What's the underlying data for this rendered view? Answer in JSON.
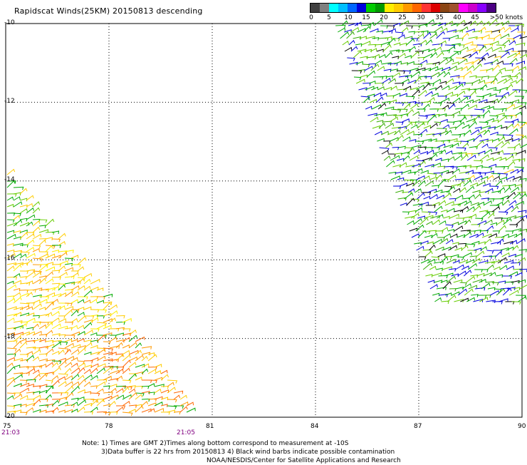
{
  "title": "Rapidscat Winds(25KM) 20150813 descending",
  "legend": {
    "colors": [
      "#404040",
      "#808080",
      "#00ffff",
      "#00bfff",
      "#0066ff",
      "#0000dd",
      "#00cc00",
      "#009900",
      "#ffee00",
      "#ffcc00",
      "#ff9900",
      "#ff6600",
      "#ff3333",
      "#dd0000",
      "#8b4513",
      "#a0522d",
      "#ff00ff",
      "#cc00cc",
      "#8800ff",
      "#4b0082"
    ],
    "labels": [
      "0",
      "5",
      "10",
      "15",
      "20",
      "25",
      "30",
      "35",
      "40",
      "45",
      ">50 knots"
    ]
  },
  "latitude_labels": [
    "-10",
    "-12",
    "-14",
    "-16",
    "-18",
    "-20"
  ],
  "longitude_labels": [
    "75",
    "78",
    "81",
    "84",
    "87",
    "90"
  ],
  "swath_times": {
    "start": "21:03",
    "end": "21:05"
  },
  "notes": [
    "Note: 1) Times are GMT 2)Times along bottom correspond to measurement at -10S",
    "3)Data buffer is 22 hrs from 20150813 4) Black wind barbs indicate possible contamination",
    "NOAA/NESDIS/Center for Satellite Applications and Research"
  ],
  "map_style": {
    "grid": "dotted",
    "frame_color": "#000000",
    "barb_colors": [
      "#00aa00",
      "#66cc00",
      "#0000dd",
      "#ffcc00",
      "#ff9900",
      "#ff6600",
      "#000000"
    ]
  }
}
